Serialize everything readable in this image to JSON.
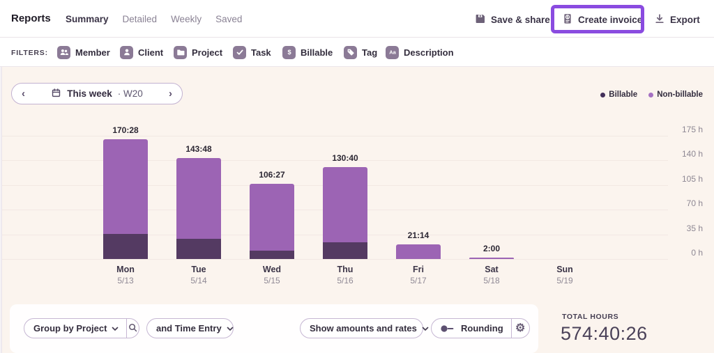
{
  "topbar": {
    "title": "Reports",
    "tabs": [
      {
        "label": "Summary",
        "active": true
      },
      {
        "label": "Detailed",
        "active": false
      },
      {
        "label": "Weekly",
        "active": false
      },
      {
        "label": "Saved",
        "active": false
      }
    ],
    "actions": {
      "save_share": "Save & share",
      "create_invoice": "Create invoice",
      "export": "Export"
    },
    "highlight_color": "#8a4be0"
  },
  "filters": {
    "label": "FILTERS:",
    "items": [
      {
        "label": "Member",
        "icon": "members-icon"
      },
      {
        "label": "Client",
        "icon": "person-icon"
      },
      {
        "label": "Project",
        "icon": "folder-icon"
      },
      {
        "label": "Task",
        "icon": "check-icon"
      },
      {
        "label": "Billable",
        "icon": "dollar-icon"
      },
      {
        "label": "Tag",
        "icon": "tag-icon"
      },
      {
        "label": "Description",
        "icon": "text-icon"
      }
    ]
  },
  "date_nav": {
    "prev": "‹",
    "next": "›",
    "label": "This week",
    "separator": "·",
    "week": "W20"
  },
  "legend": [
    {
      "label": "Billable",
      "color": "#43305a"
    },
    {
      "label": "Non-billable",
      "color": "#a571c2"
    }
  ],
  "chart_data": {
    "type": "bar",
    "stacked": true,
    "title": "",
    "xlabel": "",
    "ylabel": "hours",
    "categories": [
      "Mon",
      "Tue",
      "Wed",
      "Thu",
      "Fri",
      "Sat",
      "Sun"
    ],
    "dates": [
      "5/13",
      "5/14",
      "5/15",
      "5/16",
      "5/17",
      "5/18",
      "5/19"
    ],
    "bar_total_labels": [
      "170:28",
      "143:48",
      "106:27",
      "130:40",
      "21:14",
      "2:00",
      ""
    ],
    "series": [
      {
        "name": "Billable",
        "color": "#543a62",
        "values": [
          36,
          29,
          12,
          24,
          0,
          0,
          0
        ]
      },
      {
        "name": "Non-billable",
        "color": "#9c64b4",
        "values": [
          134.47,
          114.8,
          94.45,
          106.67,
          21.23,
          2,
          0
        ]
      }
    ],
    "totals_hours": [
      170.47,
      143.8,
      106.45,
      130.67,
      21.23,
      2,
      0
    ],
    "y_ticks": [
      "175 h",
      "140 h",
      "105 h",
      "70 h",
      "35 h",
      "0 h"
    ],
    "y_tick_values": [
      175,
      140,
      105,
      70,
      35,
      0
    ],
    "ylim": [
      0,
      175
    ],
    "grid": true,
    "legend_position": "top-right"
  },
  "footer": {
    "group_by": "Group by Project",
    "subgroup": "and Time Entry",
    "amounts": "Show amounts and rates",
    "rounding": "Rounding",
    "rounding_enabled": false,
    "total_label": "TOTAL HOURS",
    "total_value": "574:40:26"
  }
}
